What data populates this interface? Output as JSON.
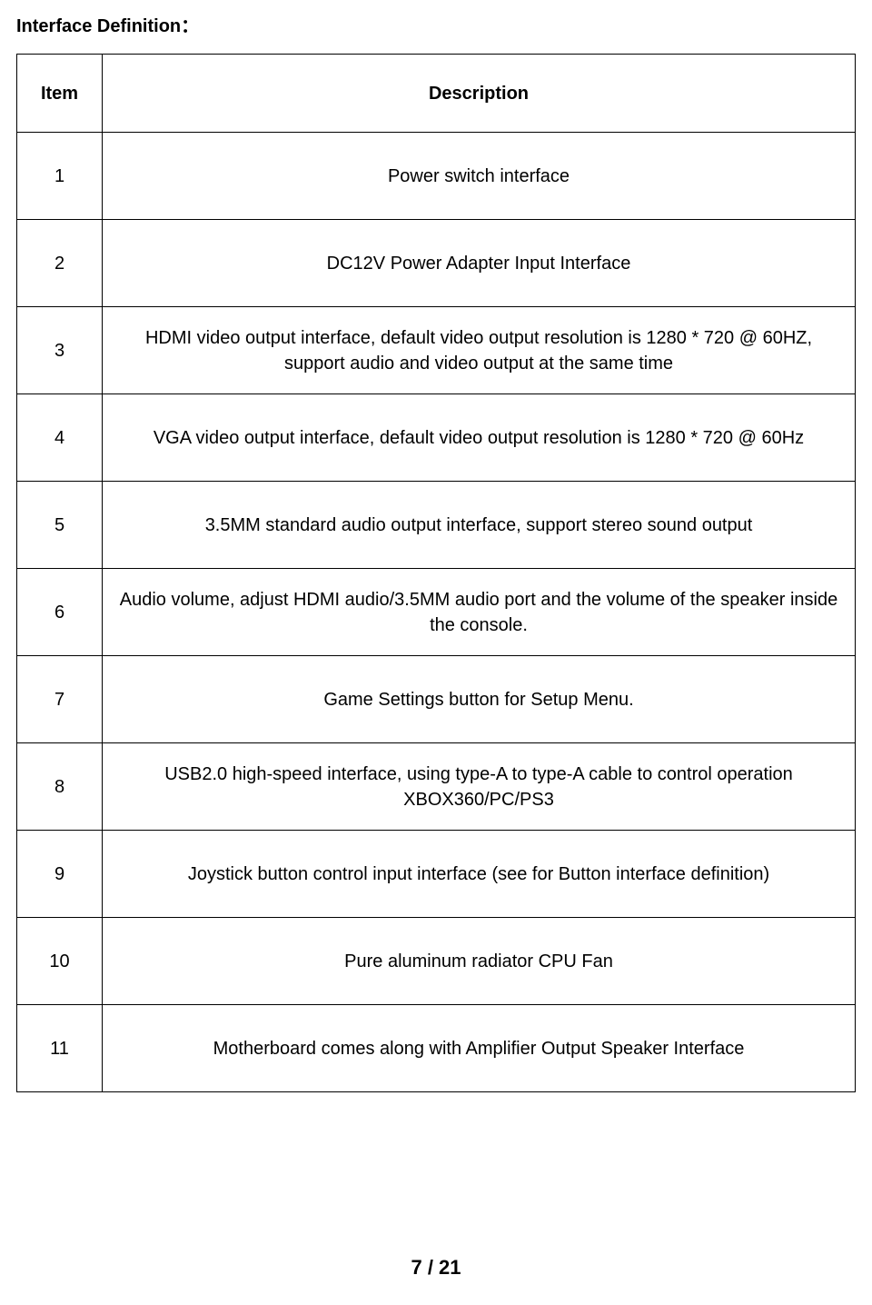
{
  "title": "Interface Definition：",
  "table": {
    "columns": [
      "Item",
      "Description"
    ],
    "rows": [
      [
        "1",
        "Power switch interface"
      ],
      [
        "2",
        "DC12V Power Adapter Input Interface"
      ],
      [
        "3",
        "HDMI video output interface, default video output resolution is 1280 * 720 @ 60HZ, support audio and video output at the same time"
      ],
      [
        "4",
        "VGA video output interface, default video output resolution is 1280 * 720 @ 60Hz"
      ],
      [
        "5",
        "3.5MM standard audio output interface, support stereo sound output"
      ],
      [
        "6",
        "Audio volume, adjust HDMI audio/3.5MM audio port and the volume of the speaker inside the console."
      ],
      [
        "7",
        "Game Settings button for Setup Menu."
      ],
      [
        "8",
        "USB2.0 high-speed interface, using type-A to type-A cable to control operation XBOX360/PC/PS3"
      ],
      [
        "9",
        "Joystick button control input interface (see for Button interface definition)"
      ],
      [
        "10",
        "Pure aluminum radiator CPU Fan"
      ],
      [
        "11",
        "Motherboard comes along with Amplifier Output Speaker Interface"
      ]
    ],
    "border_color": "#000000",
    "text_color": "#000000",
    "header_fontsize": 20,
    "cell_fontsize": 20,
    "item_col_width": 94
  },
  "page_number": {
    "current": "7",
    "sep": " / ",
    "total": "21"
  }
}
